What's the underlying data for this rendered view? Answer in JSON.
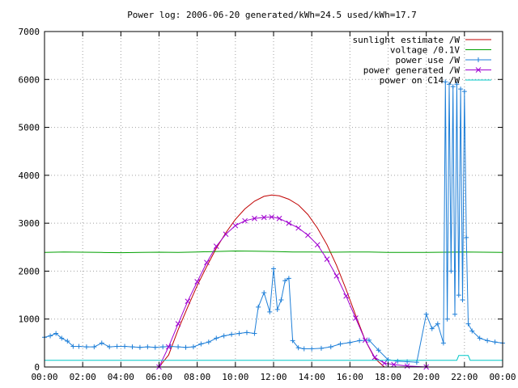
{
  "chart_data": {
    "type": "line",
    "title": "Power log: 2006-06-20 generated/kWh=24.5 used/kWh=17.7",
    "xlabel": "",
    "ylabel": "",
    "x_unit": "hours",
    "xlim": [
      0,
      24
    ],
    "ylim": [
      0,
      7000
    ],
    "grid": true,
    "legend_position": "top-right",
    "x_ticks": [
      {
        "value": 0,
        "label": "00:00"
      },
      {
        "value": 2,
        "label": "02:00"
      },
      {
        "value": 4,
        "label": "04:00"
      },
      {
        "value": 6,
        "label": "06:00"
      },
      {
        "value": 8,
        "label": "08:00"
      },
      {
        "value": 10,
        "label": "10:00"
      },
      {
        "value": 12,
        "label": "12:00"
      },
      {
        "value": 14,
        "label": "14:00"
      },
      {
        "value": 16,
        "label": "16:00"
      },
      {
        "value": 18,
        "label": "18:00"
      },
      {
        "value": 20,
        "label": "20:00"
      },
      {
        "value": 22,
        "label": "22:00"
      },
      {
        "value": 24,
        "label": "00:00"
      }
    ],
    "y_ticks": [
      {
        "value": 0,
        "label": "0"
      },
      {
        "value": 1000,
        "label": "1000"
      },
      {
        "value": 2000,
        "label": "2000"
      },
      {
        "value": 3000,
        "label": "3000"
      },
      {
        "value": 4000,
        "label": "4000"
      },
      {
        "value": 5000,
        "label": "5000"
      },
      {
        "value": 6000,
        "label": "6000"
      },
      {
        "value": 7000,
        "label": "7000"
      }
    ],
    "series": [
      {
        "name": "sunlight estimate /W",
        "color": "#c00000",
        "marker": "none",
        "x": [
          6.0,
          6.5,
          7.0,
          7.5,
          8.0,
          8.5,
          9.0,
          9.5,
          10.0,
          10.5,
          11.0,
          11.5,
          11.9,
          12.3,
          12.8,
          13.3,
          13.8,
          14.3,
          14.8,
          15.3,
          15.8,
          16.3,
          16.8,
          17.3,
          17.8
        ],
        "values": [
          0,
          250,
          780,
          1250,
          1700,
          2100,
          2480,
          2800,
          3080,
          3300,
          3460,
          3560,
          3590,
          3570,
          3500,
          3380,
          3180,
          2900,
          2550,
          2120,
          1620,
          1080,
          560,
          180,
          0
        ]
      },
      {
        "name": "voltage /0.1V",
        "color": "#00a000",
        "marker": "none",
        "x": [
          0,
          1,
          2,
          3,
          4,
          5,
          6,
          7,
          8,
          9,
          10,
          11,
          12,
          13,
          14,
          15,
          16,
          17,
          18,
          19,
          20,
          21,
          22,
          23,
          24
        ],
        "values": [
          2390,
          2400,
          2395,
          2390,
          2385,
          2390,
          2395,
          2390,
          2400,
          2410,
          2420,
          2415,
          2410,
          2400,
          2400,
          2395,
          2400,
          2400,
          2390,
          2390,
          2390,
          2395,
          2400,
          2395,
          2390
        ]
      },
      {
        "name": "power use /W",
        "color": "#1e7fd8",
        "marker": "plus",
        "x": [
          0,
          0.3,
          0.6,
          0.9,
          1.2,
          1.5,
          1.8,
          2.2,
          2.6,
          3.0,
          3.4,
          3.8,
          4.2,
          4.6,
          5.0,
          5.4,
          5.8,
          6.2,
          6.6,
          7.0,
          7.4,
          7.8,
          8.2,
          8.6,
          9.0,
          9.4,
          9.8,
          10.2,
          10.6,
          11.0,
          11.2,
          11.5,
          11.8,
          12.0,
          12.2,
          12.4,
          12.6,
          12.8,
          13.0,
          13.3,
          13.6,
          14.0,
          14.5,
          15.0,
          15.5,
          16.0,
          16.5,
          17.0,
          17.5,
          18.0,
          18.5,
          19.0,
          19.5,
          20.0,
          20.3,
          20.6,
          20.9,
          21.0,
          21.1,
          21.2,
          21.3,
          21.4,
          21.5,
          21.6,
          21.7,
          21.8,
          21.9,
          22.0,
          22.1,
          22.2,
          22.4,
          22.8,
          23.2,
          23.6,
          24.0
        ],
        "values": [
          620,
          650,
          700,
          600,
          540,
          430,
          430,
          420,
          420,
          500,
          420,
          430,
          430,
          420,
          410,
          420,
          410,
          420,
          430,
          420,
          410,
          420,
          480,
          520,
          600,
          650,
          680,
          700,
          720,
          700,
          1250,
          1550,
          1150,
          2050,
          1200,
          1400,
          1800,
          1850,
          550,
          400,
          380,
          380,
          390,
          420,
          480,
          510,
          550,
          560,
          350,
          150,
          120,
          110,
          100,
          1100,
          800,
          900,
          500,
          5950,
          1000,
          5900,
          2000,
          5850,
          1100,
          5900,
          1500,
          5800,
          1400,
          5750,
          2700,
          900,
          750,
          600,
          550,
          520,
          500
        ]
      },
      {
        "name": "power generated /W",
        "color": "#a000d0",
        "marker": "cross",
        "x": [
          6.0,
          6.5,
          7.0,
          7.5,
          8.0,
          8.5,
          9.0,
          9.5,
          10.0,
          10.5,
          11.0,
          11.5,
          11.9,
          12.3,
          12.8,
          13.3,
          13.8,
          14.3,
          14.8,
          15.3,
          15.8,
          16.3,
          16.8,
          17.3,
          17.8,
          18.3,
          19.0,
          20.0
        ],
        "values": [
          0,
          420,
          900,
          1370,
          1780,
          2180,
          2520,
          2770,
          2950,
          3050,
          3100,
          3120,
          3130,
          3100,
          3000,
          2900,
          2750,
          2550,
          2250,
          1900,
          1480,
          1020,
          560,
          200,
          80,
          50,
          20,
          0
        ]
      },
      {
        "name": "power on C14 /W",
        "color": "#00c8c8",
        "marker": "none",
        "x": [
          0,
          3,
          6,
          9,
          12,
          15,
          18,
          21,
          21.6,
          21.7,
          22.2,
          22.3,
          24
        ],
        "values": [
          140,
          140,
          140,
          140,
          140,
          140,
          140,
          140,
          140,
          240,
          240,
          140,
          140
        ]
      }
    ]
  }
}
